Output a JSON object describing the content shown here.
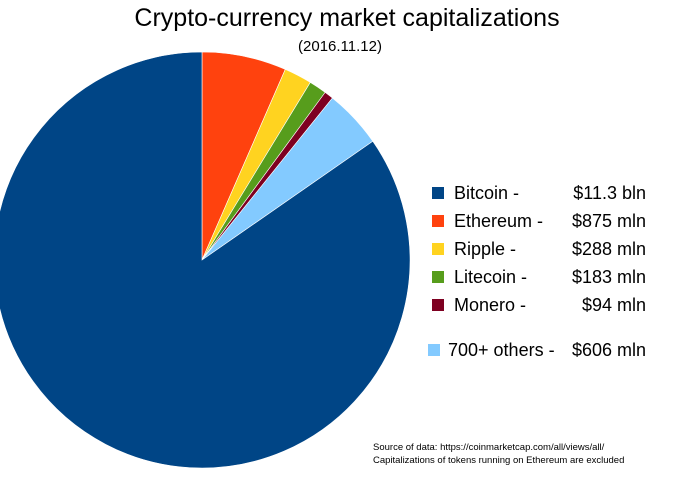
{
  "chart_data": {
    "type": "pie",
    "title": "Crypto-currency market capitalizations",
    "subtitle": "(2016.11.12)",
    "unit": "million USD",
    "slices": [
      {
        "name": "Ethereum",
        "label": "Ethereum -",
        "value_label": "$875 mln",
        "value": 875,
        "color": "#ff420e"
      },
      {
        "name": "Ripple",
        "label": "Ripple -",
        "value_label": "$288 mln",
        "value": 288,
        "color": "#ffd320"
      },
      {
        "name": "Litecoin",
        "label": "Litecoin -",
        "value_label": "$183 mln",
        "value": 183,
        "color": "#579d1c"
      },
      {
        "name": "Monero",
        "label": "Monero -",
        "value_label": "$94 mln",
        "value": 94,
        "color": "#7e0021"
      },
      {
        "name": "700+ others",
        "label": "700+ others -",
        "value_label": "$606 mln",
        "value": 606,
        "color": "#83caff"
      },
      {
        "name": "Bitcoin",
        "label": "Bitcoin -",
        "value_label": "$11.3  bln",
        "value": 11300,
        "color": "#004586"
      }
    ],
    "legend_order": [
      5,
      0,
      1,
      2,
      3,
      4
    ],
    "legend_position": "right",
    "notes": [
      "Source of data: https://coinmarketcap.com/all/views/all/",
      "Capitalizations of tokens running on Ethereum are excluded"
    ]
  }
}
